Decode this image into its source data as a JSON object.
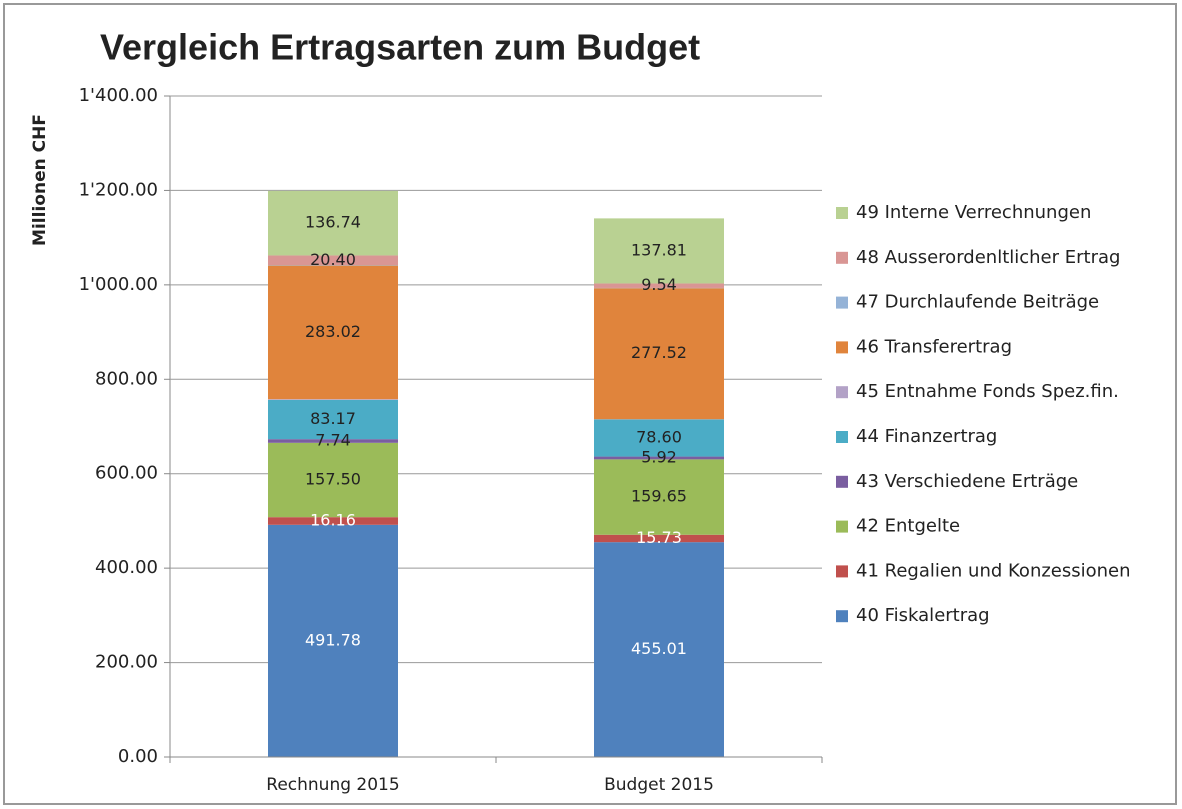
{
  "chart_data": {
    "type": "stacked_bar",
    "title": "Vergleich Ertragsarten zum Budget",
    "y_axis_label": "Millionen  CHF",
    "categories": [
      "Rechnung 2015",
      "Budget 2015"
    ],
    "series": [
      {
        "name": "40 Fiskalertrag",
        "color": "#4f81bd",
        "values": [
          491.78,
          455.01
        ]
      },
      {
        "name": "41 Regalien und Konzessionen",
        "color": "#c0504d",
        "values": [
          16.16,
          15.73
        ]
      },
      {
        "name": "42 Entgelte",
        "color": "#9bbb59",
        "values": [
          157.5,
          159.65
        ],
        "value_labels": [
          "157.50",
          "159.65"
        ]
      },
      {
        "name": "43 Verschiedene Erträge",
        "color": "#7a5ea0",
        "values": [
          7.74,
          5.92
        ]
      },
      {
        "name": "44 Finanzertrag",
        "color": "#4bacc6",
        "values": [
          83.17,
          78.6
        ],
        "value_labels": [
          "83.17",
          "78.60"
        ]
      },
      {
        "name": "45 Entnahme Fonds Spez.fin.",
        "color": "#b3a2c7",
        "values": [
          1.5,
          0.5
        ]
      },
      {
        "name": "46 Transferertrag",
        "color": "#e0843c",
        "values": [
          283.02,
          277.52
        ]
      },
      {
        "name": "47 Durchlaufende Beiträge",
        "color": "#95b3d7",
        "values": [
          1,
          0.5
        ]
      },
      {
        "name": "48 Ausserordenltlicher Ertrag",
        "color": "#d99694",
        "values": [
          20.4,
          9.54
        ],
        "value_labels": [
          "20.40",
          "9.54"
        ]
      },
      {
        "name": "49 Interne Verrechnungen",
        "color": "#b9d192",
        "values": [
          136.74,
          137.81
        ]
      }
    ],
    "ylim": [
      0,
      1400
    ],
    "yticks": [
      {
        "value": 0,
        "label": "0.00"
      },
      {
        "value": 200,
        "label": "200.00"
      },
      {
        "value": 400,
        "label": "400.00"
      },
      {
        "value": 600,
        "label": "600.00"
      },
      {
        "value": 800,
        "label": "800.00"
      },
      {
        "value": 1000,
        "label": "1'000.00"
      },
      {
        "value": 1200,
        "label": "1'200.00"
      },
      {
        "value": 1400,
        "label": "1'400.00"
      }
    ],
    "grid": true,
    "legend": "right"
  }
}
